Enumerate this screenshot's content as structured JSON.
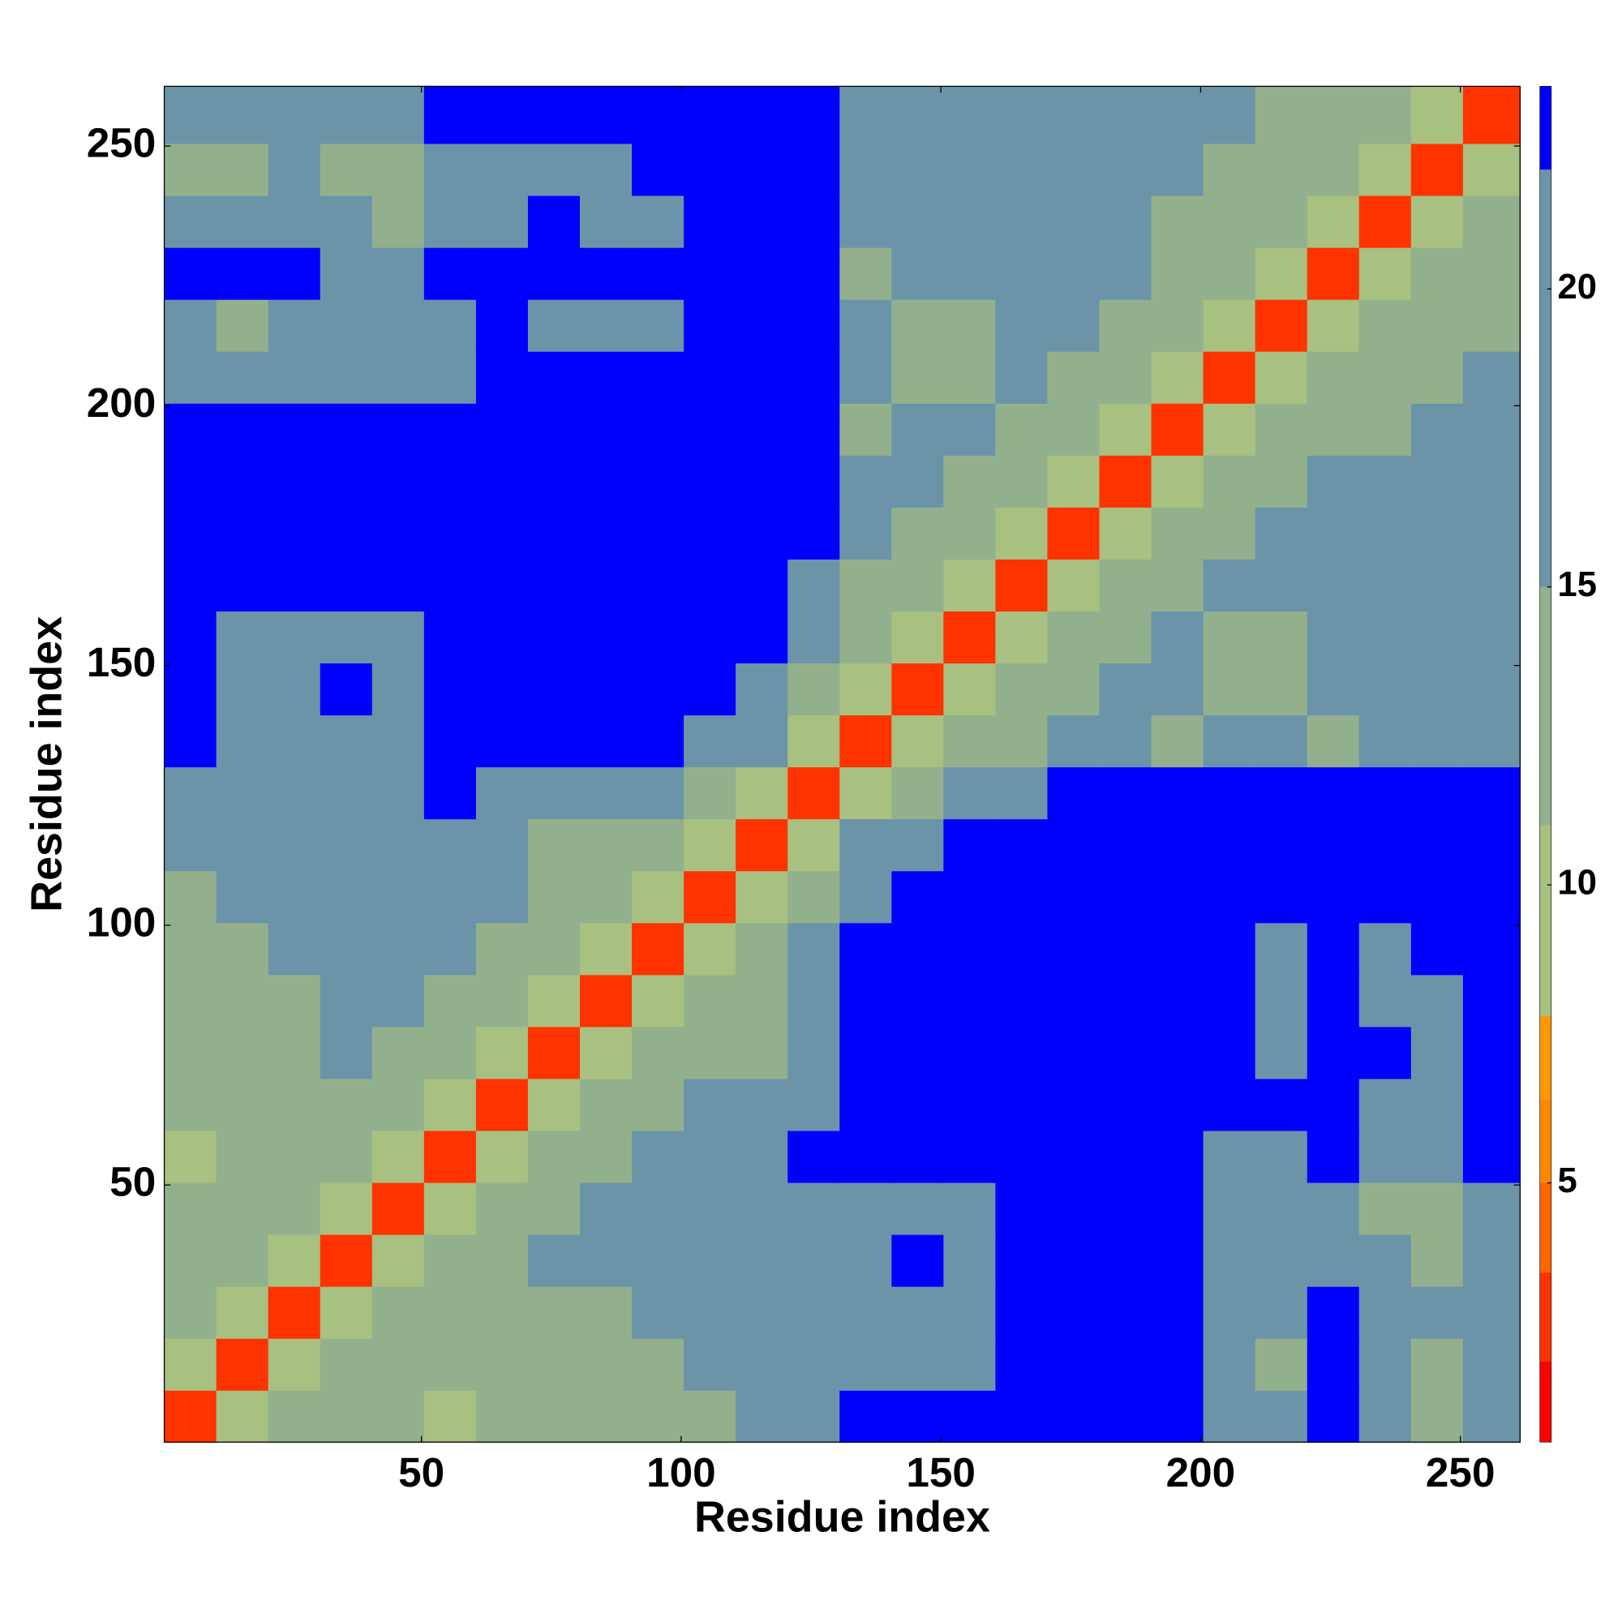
{
  "chart_data": {
    "type": "heatmap",
    "x_label": "Residue index",
    "y_label": "Residue index",
    "xlim": [
      0.5,
      261.5
    ],
    "ylim": [
      0.5,
      261.5
    ],
    "xticks": [
      50,
      100,
      150,
      200,
      250
    ],
    "yticks": [
      50,
      100,
      150,
      200,
      250
    ],
    "bins": [
      0.5,
      10.5,
      20.5,
      30.5,
      40.5,
      50.5,
      60.5,
      70.5,
      80.5,
      90.5,
      100.5,
      110.5,
      120.5,
      130.5,
      140.5,
      150.5,
      160.5,
      170.5,
      180.5,
      190.5,
      200.5,
      210.5,
      220.5,
      230.5,
      240.5,
      250.5,
      261.5
    ],
    "zlim": [
      0.65,
      23.4
    ],
    "zticks": [
      5,
      10,
      15,
      20
    ],
    "colorscale": [
      [
        2,
        "#ff0000"
      ],
      [
        3.5,
        "#ff3300"
      ],
      [
        5,
        "#ff6600"
      ],
      [
        6.4,
        "#ff8800"
      ],
      [
        7.8,
        "#ff9900"
      ],
      [
        11,
        "#a8c080"
      ],
      [
        15,
        "#93b08c"
      ],
      [
        22,
        "#6c94a8"
      ],
      [
        23.4,
        "#0000ff"
      ]
    ],
    "z": [
      [
        3,
        10,
        13,
        14,
        14,
        10,
        14,
        15,
        12,
        13,
        15,
        17,
        18,
        23,
        23,
        23,
        23,
        23,
        23,
        23,
        20,
        18,
        23,
        17,
        15,
        20
      ],
      [
        10,
        3,
        10,
        13,
        14,
        15,
        15,
        14,
        12,
        14,
        16,
        17,
        19,
        22,
        22,
        22,
        23,
        23,
        23,
        23,
        18,
        15,
        23,
        16,
        15,
        19
      ],
      [
        13,
        10,
        3,
        10,
        12,
        14,
        12,
        13,
        15,
        16,
        18,
        19,
        17,
        21,
        22,
        21,
        23,
        23,
        23,
        23,
        19,
        16,
        23,
        18,
        17,
        20
      ],
      [
        14,
        13,
        10,
        3,
        10,
        12,
        14,
        16,
        17,
        18,
        19,
        20,
        17,
        20,
        23,
        21,
        23,
        23,
        23,
        23,
        17,
        16,
        19,
        16,
        14,
        19
      ],
      [
        14,
        14,
        12,
        10,
        3,
        10,
        13,
        15,
        17,
        19,
        20,
        21,
        18,
        21,
        21,
        21,
        23,
        23,
        23,
        23,
        17,
        16,
        18,
        15,
        14,
        17
      ],
      [
        10,
        15,
        14,
        12,
        10,
        3,
        10,
        12,
        14,
        17,
        19,
        21,
        23,
        23,
        23,
        23,
        23,
        23,
        23,
        23,
        18,
        17,
        23,
        17,
        18,
        23
      ],
      [
        14,
        15,
        12,
        14,
        13,
        10,
        3,
        10,
        12,
        14,
        16,
        17,
        21,
        23,
        23,
        23,
        23,
        23,
        23,
        23,
        23,
        23,
        23,
        22,
        21,
        23
      ],
      [
        15,
        14,
        13,
        16,
        15,
        12,
        10,
        3,
        10,
        12,
        14,
        15,
        19,
        23,
        23,
        23,
        23,
        23,
        23,
        23,
        23,
        21,
        23,
        23,
        20,
        23
      ],
      [
        12,
        12,
        15,
        17,
        17,
        14,
        12,
        10,
        3,
        10,
        12,
        13,
        17,
        23,
        23,
        23,
        23,
        23,
        23,
        23,
        23,
        21,
        23,
        21,
        21,
        23
      ],
      [
        13,
        14,
        16,
        18,
        19,
        17,
        14,
        12,
        10,
        3,
        10,
        12,
        16,
        23,
        23,
        23,
        23,
        23,
        23,
        23,
        23,
        21,
        23,
        21,
        23,
        23
      ],
      [
        15,
        16,
        18,
        19,
        20,
        19,
        16,
        14,
        12,
        10,
        3,
        10,
        13,
        22,
        23,
        23,
        23,
        23,
        23,
        23,
        23,
        23,
        23,
        23,
        23,
        23
      ],
      [
        17,
        17,
        19,
        20,
        21,
        21,
        17,
        15,
        13,
        12,
        10,
        3,
        10,
        19,
        21,
        23,
        23,
        23,
        23,
        23,
        23,
        23,
        23,
        23,
        23,
        23
      ],
      [
        18,
        19,
        17,
        17,
        18,
        23,
        21,
        19,
        17,
        16,
        13,
        10,
        3,
        10,
        14,
        18,
        22,
        23,
        23,
        23,
        23,
        23,
        23,
        23,
        23,
        23
      ],
      [
        23,
        22,
        21,
        20,
        21,
        23,
        23,
        23,
        23,
        23,
        22,
        19,
        10,
        3,
        10,
        14,
        15,
        16,
        18,
        12,
        16,
        16,
        13,
        18,
        20,
        21
      ],
      [
        23,
        22,
        22,
        23,
        21,
        23,
        23,
        23,
        23,
        23,
        23,
        21,
        14,
        10,
        3,
        10,
        13,
        15,
        17,
        16,
        14,
        15,
        17,
        18,
        19,
        21
      ],
      [
        23,
        22,
        21,
        21,
        21,
        23,
        23,
        23,
        23,
        23,
        23,
        23,
        18,
        14,
        10,
        3,
        10,
        13,
        15,
        17,
        13,
        15,
        16,
        18,
        17,
        19
      ],
      [
        23,
        23,
        23,
        23,
        23,
        23,
        23,
        23,
        23,
        23,
        23,
        23,
        22,
        15,
        13,
        10,
        3,
        10,
        12,
        14,
        16,
        17,
        18,
        20,
        21,
        22
      ],
      [
        23,
        23,
        23,
        23,
        23,
        23,
        23,
        23,
        23,
        23,
        23,
        23,
        23,
        16,
        15,
        13,
        10,
        3,
        10,
        12,
        15,
        17,
        19,
        20,
        22,
        22
      ],
      [
        23,
        23,
        23,
        23,
        23,
        23,
        23,
        23,
        23,
        23,
        23,
        23,
        23,
        18,
        17,
        15,
        12,
        10,
        3,
        10,
        13,
        15,
        16,
        18,
        20,
        21
      ],
      [
        23,
        23,
        23,
        23,
        23,
        23,
        23,
        23,
        23,
        23,
        23,
        23,
        23,
        12,
        16,
        17,
        14,
        12,
        10,
        3,
        10,
        12,
        14,
        15,
        17,
        18
      ],
      [
        20,
        18,
        19,
        17,
        17,
        18,
        23,
        23,
        23,
        23,
        23,
        23,
        23,
        16,
        14,
        13,
        16,
        15,
        13,
        10,
        3,
        10,
        12,
        13,
        14,
        16
      ],
      [
        18,
        15,
        16,
        16,
        16,
        17,
        23,
        21,
        21,
        21,
        23,
        23,
        23,
        16,
        15,
        15,
        17,
        17,
        15,
        12,
        10,
        3,
        10,
        12,
        14,
        15
      ],
      [
        23,
        23,
        23,
        19,
        18,
        23,
        23,
        23,
        23,
        23,
        23,
        23,
        23,
        13,
        17,
        16,
        18,
        19,
        16,
        14,
        12,
        10,
        3,
        10,
        12,
        13
      ],
      [
        17,
        16,
        18,
        16,
        15,
        17,
        22,
        23,
        21,
        21,
        23,
        23,
        23,
        18,
        18,
        18,
        20,
        20,
        18,
        15,
        13,
        12,
        10,
        3,
        10,
        12
      ],
      [
        15,
        15,
        17,
        14,
        14,
        18,
        21,
        20,
        21,
        23,
        23,
        23,
        23,
        20,
        19,
        17,
        21,
        22,
        20,
        17,
        14,
        14,
        12,
        10,
        3,
        10
      ],
      [
        20,
        19,
        20,
        19,
        17,
        23,
        23,
        23,
        23,
        23,
        23,
        23,
        23,
        21,
        21,
        19,
        22,
        22,
        21,
        18,
        16,
        15,
        13,
        12,
        10,
        3
      ]
    ]
  }
}
